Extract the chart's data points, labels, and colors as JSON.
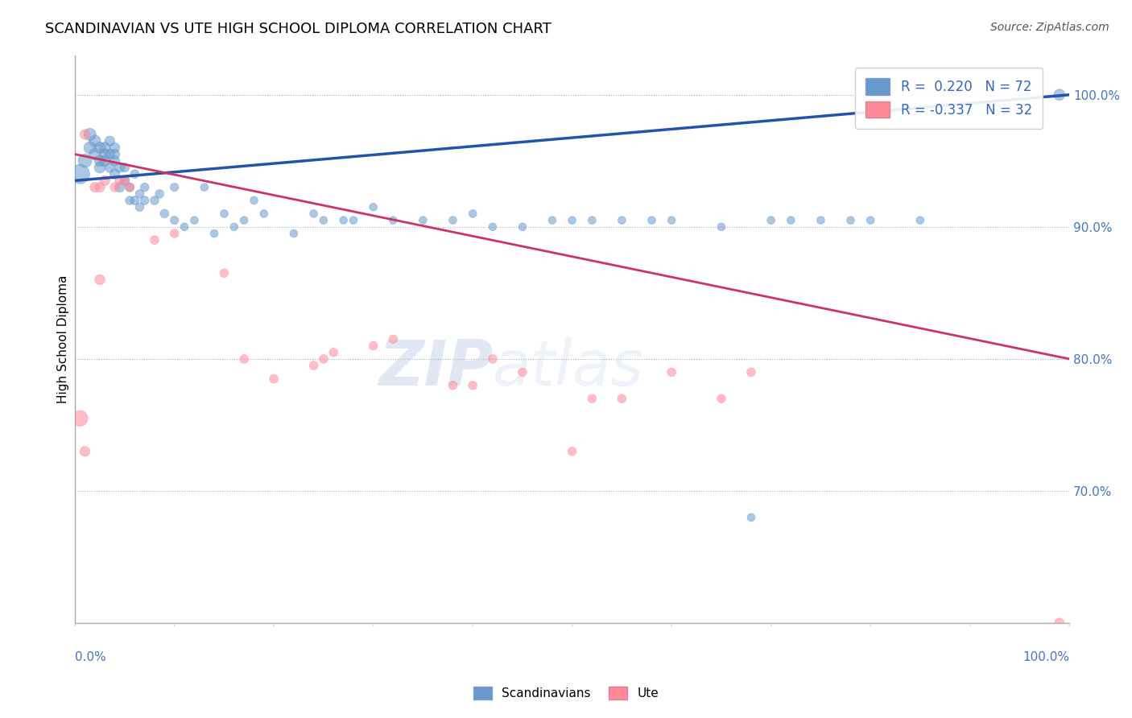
{
  "title": "SCANDINAVIAN VS UTE HIGH SCHOOL DIPLOMA CORRELATION CHART",
  "source": "Source: ZipAtlas.com",
  "ylabel": "High School Diploma",
  "legend_blue_label": "Scandinavians",
  "legend_pink_label": "Ute",
  "r_blue": 0.22,
  "n_blue": 72,
  "r_pink": -0.337,
  "n_pink": 32,
  "xlim": [
    0,
    1
  ],
  "ylim": [
    0.6,
    1.03
  ],
  "yticks": [
    0.7,
    0.8,
    0.9,
    1.0
  ],
  "ytick_labels": [
    "70.0%",
    "80.0%",
    "90.0%",
    "100.0%"
  ],
  "hline_positions": [
    1.0,
    0.9,
    0.8,
    0.7
  ],
  "blue_color": "#6699CC",
  "pink_color": "#FF8899",
  "blue_line_color": "#2255AA",
  "pink_line_color": "#CC3366",
  "watermark_zip": "ZIP",
  "watermark_atlas": "atlas",
  "scandinavian_x": [
    0.005,
    0.01,
    0.015,
    0.015,
    0.02,
    0.02,
    0.025,
    0.025,
    0.025,
    0.03,
    0.03,
    0.03,
    0.035,
    0.035,
    0.035,
    0.04,
    0.04,
    0.04,
    0.04,
    0.045,
    0.045,
    0.05,
    0.05,
    0.055,
    0.055,
    0.06,
    0.06,
    0.065,
    0.065,
    0.07,
    0.07,
    0.08,
    0.085,
    0.09,
    0.1,
    0.1,
    0.11,
    0.12,
    0.13,
    0.14,
    0.15,
    0.16,
    0.17,
    0.18,
    0.19,
    0.22,
    0.24,
    0.25,
    0.27,
    0.28,
    0.3,
    0.32,
    0.35,
    0.38,
    0.4,
    0.42,
    0.45,
    0.48,
    0.5,
    0.52,
    0.55,
    0.58,
    0.6,
    0.65,
    0.68,
    0.7,
    0.72,
    0.75,
    0.78,
    0.8,
    0.85,
    0.99
  ],
  "scandinavian_y": [
    0.94,
    0.95,
    0.96,
    0.97,
    0.955,
    0.965,
    0.945,
    0.95,
    0.96,
    0.95,
    0.955,
    0.96,
    0.945,
    0.955,
    0.965,
    0.94,
    0.95,
    0.955,
    0.96,
    0.93,
    0.945,
    0.935,
    0.945,
    0.92,
    0.93,
    0.92,
    0.94,
    0.915,
    0.925,
    0.93,
    0.92,
    0.92,
    0.925,
    0.91,
    0.905,
    0.93,
    0.9,
    0.905,
    0.93,
    0.895,
    0.91,
    0.9,
    0.905,
    0.92,
    0.91,
    0.895,
    0.91,
    0.905,
    0.905,
    0.905,
    0.915,
    0.905,
    0.905,
    0.905,
    0.91,
    0.9,
    0.9,
    0.905,
    0.905,
    0.905,
    0.905,
    0.905,
    0.905,
    0.9,
    0.68,
    0.905,
    0.905,
    0.905,
    0.905,
    0.905,
    0.905,
    1.0
  ],
  "scandinavian_sizes": [
    300,
    150,
    120,
    120,
    110,
    110,
    100,
    100,
    100,
    100,
    100,
    100,
    80,
    80,
    80,
    80,
    80,
    80,
    80,
    80,
    80,
    70,
    70,
    60,
    60,
    60,
    60,
    60,
    60,
    60,
    60,
    60,
    60,
    60,
    55,
    55,
    50,
    50,
    50,
    50,
    50,
    50,
    50,
    50,
    50,
    50,
    50,
    50,
    50,
    50,
    50,
    50,
    50,
    50,
    50,
    50,
    50,
    50,
    50,
    50,
    50,
    50,
    50,
    50,
    50,
    50,
    50,
    50,
    50,
    50,
    50,
    100
  ],
  "ute_x": [
    0.005,
    0.01,
    0.01,
    0.02,
    0.025,
    0.025,
    0.03,
    0.04,
    0.045,
    0.05,
    0.055,
    0.08,
    0.1,
    0.15,
    0.17,
    0.2,
    0.24,
    0.25,
    0.26,
    0.3,
    0.32,
    0.38,
    0.4,
    0.42,
    0.45,
    0.5,
    0.52,
    0.55,
    0.6,
    0.65,
    0.68,
    0.99
  ],
  "ute_y": [
    0.755,
    0.97,
    0.73,
    0.93,
    0.86,
    0.93,
    0.935,
    0.93,
    0.935,
    0.935,
    0.93,
    0.89,
    0.895,
    0.865,
    0.8,
    0.785,
    0.795,
    0.8,
    0.805,
    0.81,
    0.815,
    0.78,
    0.78,
    0.8,
    0.79,
    0.73,
    0.77,
    0.77,
    0.79,
    0.77,
    0.79,
    0.6
  ],
  "ute_sizes": [
    200,
    80,
    80,
    80,
    80,
    80,
    80,
    70,
    70,
    70,
    70,
    60,
    60,
    60,
    60,
    60,
    60,
    60,
    60,
    60,
    60,
    60,
    60,
    60,
    60,
    60,
    60,
    60,
    60,
    60,
    60,
    80
  ],
  "blue_trend_y_start": 0.935,
  "blue_trend_y_end": 1.0,
  "pink_trend_y_start": 0.955,
  "pink_trend_y_end": 0.8
}
